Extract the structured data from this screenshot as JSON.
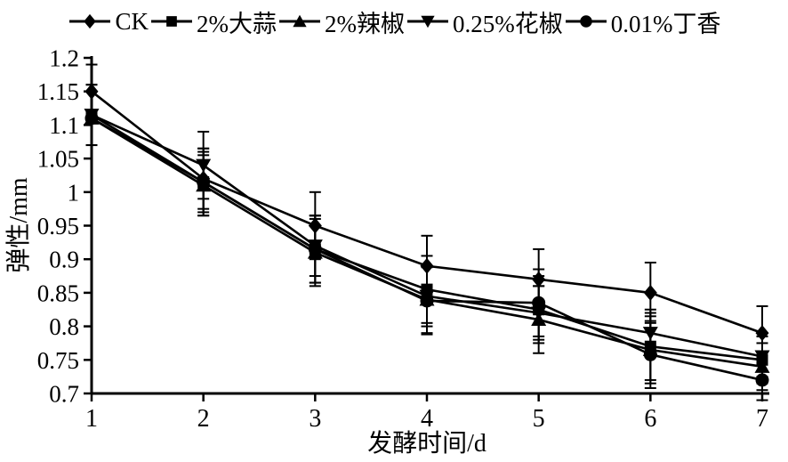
{
  "figure": {
    "background": "#ffffff",
    "ink_color": "#000000"
  },
  "chart_data": {
    "type": "line",
    "title": "",
    "xlabel": "发酵时间/d",
    "ylabel": "弹性/mm",
    "xlim": [
      1,
      7
    ],
    "ylim": [
      0.7,
      1.2
    ],
    "grid": false,
    "legend_position": "top",
    "error_bars": true,
    "x": [
      1,
      2,
      3,
      4,
      5,
      6,
      7
    ],
    "xticks": [
      {
        "value": 1,
        "label": "1"
      },
      {
        "value": 2,
        "label": "2"
      },
      {
        "value": 3,
        "label": "3"
      },
      {
        "value": 4,
        "label": "4"
      },
      {
        "value": 5,
        "label": "5"
      },
      {
        "value": 6,
        "label": "6"
      },
      {
        "value": 7,
        "label": "7"
      }
    ],
    "yticks": [
      {
        "value": 0.7,
        "label": "0.7"
      },
      {
        "value": 0.75,
        "label": "0.75"
      },
      {
        "value": 0.8,
        "label": "0.8"
      },
      {
        "value": 0.85,
        "label": "0.85"
      },
      {
        "value": 0.9,
        "label": "0.9"
      },
      {
        "value": 0.95,
        "label": "0.95"
      },
      {
        "value": 1.0,
        "label": "1"
      },
      {
        "value": 1.05,
        "label": "1.05"
      },
      {
        "value": 1.1,
        "label": "1.1"
      },
      {
        "value": 1.15,
        "label": "1.15"
      },
      {
        "value": 1.2,
        "label": "1.2"
      }
    ],
    "series": [
      {
        "name": "CK",
        "marker": "diamond",
        "values": [
          1.15,
          1.02,
          0.95,
          0.89,
          0.87,
          0.85,
          0.79
        ],
        "errors": [
          0.04,
          0.045,
          0.05,
          0.045,
          0.045,
          0.045,
          0.04
        ]
      },
      {
        "name": "2%大蒜",
        "marker": "square",
        "values": [
          1.115,
          1.015,
          0.915,
          0.855,
          0.825,
          0.77,
          0.75
        ],
        "errors": [
          0.045,
          0.05,
          0.05,
          0.05,
          0.05,
          0.05,
          0.035
        ]
      },
      {
        "name": "2%辣椒",
        "marker": "triangle-up",
        "values": [
          1.11,
          1.01,
          0.91,
          0.84,
          0.81,
          0.765,
          0.74
        ],
        "errors": [
          0.04,
          0.045,
          0.05,
          0.05,
          0.05,
          0.05,
          0.035
        ]
      },
      {
        "name": "0.25%花椒",
        "marker": "triangle-down",
        "values": [
          1.115,
          1.04,
          0.92,
          0.845,
          0.82,
          0.79,
          0.755
        ],
        "errors": [
          0.045,
          0.05,
          0.045,
          0.045,
          0.04,
          0.035,
          0.03
        ]
      },
      {
        "name": "0.01%丁香",
        "marker": "circle",
        "values": [
          1.11,
          1.015,
          0.915,
          0.838,
          0.835,
          0.758,
          0.72
        ],
        "errors": [
          0.04,
          0.045,
          0.05,
          0.05,
          0.05,
          0.05,
          0.03
        ]
      }
    ]
  }
}
